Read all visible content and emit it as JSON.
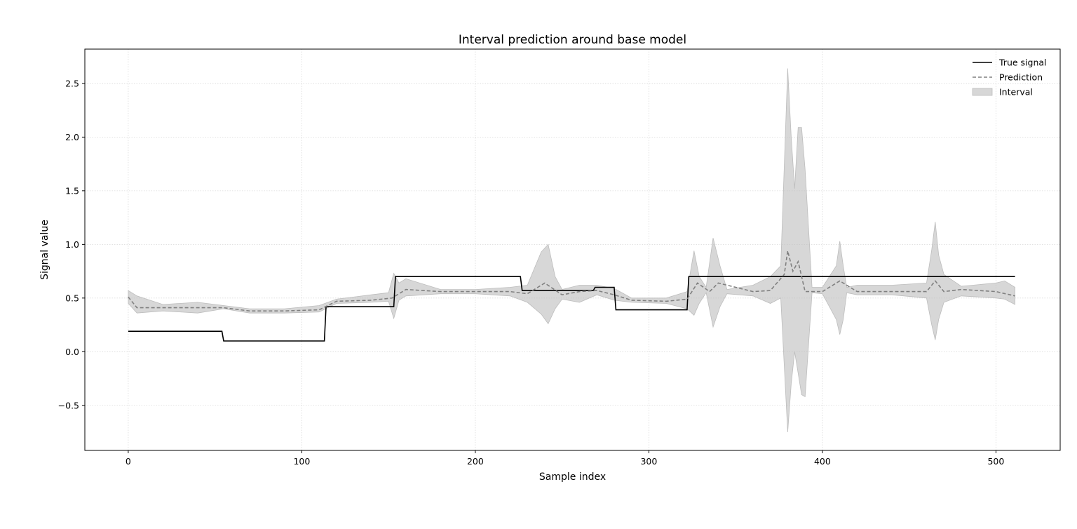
{
  "chart_data": {
    "type": "line",
    "title": "Interval prediction around base model",
    "xlabel": "Sample index",
    "ylabel": "Signal value",
    "xlim": [
      -25,
      537
    ],
    "ylim": [
      -0.92,
      2.82
    ],
    "xticks": [
      0,
      100,
      200,
      300,
      400,
      500
    ],
    "yticks": [
      -0.5,
      0.0,
      0.5,
      1.0,
      1.5,
      2.0,
      2.5
    ],
    "ytick_labels": [
      "−0.5",
      "0.0",
      "0.5",
      "1.0",
      "1.5",
      "2.0",
      "2.5"
    ],
    "grid": true,
    "legend_position": "top-right",
    "series": [
      {
        "name": "True signal",
        "style": "solid",
        "color": "#000000",
        "x": [
          0,
          54,
          55,
          113,
          114,
          153,
          154,
          226,
          227,
          268,
          269,
          280,
          281,
          322,
          323,
          511
        ],
        "y": [
          0.19,
          0.19,
          0.1,
          0.1,
          0.42,
          0.42,
          0.7,
          0.7,
          0.57,
          0.57,
          0.6,
          0.6,
          0.39,
          0.39,
          0.7,
          0.7
        ]
      },
      {
        "name": "Prediction",
        "style": "dashed",
        "color": "#808080",
        "x": [
          0,
          5,
          20,
          40,
          55,
          70,
          90,
          110,
          120,
          140,
          152,
          160,
          180,
          200,
          220,
          230,
          240,
          250,
          260,
          270,
          280,
          290,
          310,
          322,
          328,
          335,
          340,
          360,
          370,
          378,
          380,
          383,
          386,
          390,
          400,
          410,
          420,
          440,
          460,
          465,
          470,
          480,
          500,
          511
        ],
        "y": [
          0.51,
          0.41,
          0.41,
          0.41,
          0.41,
          0.38,
          0.38,
          0.39,
          0.47,
          0.48,
          0.5,
          0.58,
          0.56,
          0.56,
          0.56,
          0.54,
          0.64,
          0.53,
          0.56,
          0.57,
          0.53,
          0.48,
          0.47,
          0.49,
          0.64,
          0.56,
          0.64,
          0.56,
          0.57,
          0.72,
          0.94,
          0.75,
          0.84,
          0.56,
          0.56,
          0.66,
          0.56,
          0.56,
          0.56,
          0.66,
          0.56,
          0.58,
          0.56,
          0.52
        ]
      },
      {
        "name": "Interval",
        "style": "band",
        "color": "#bdbdbd",
        "x": [
          0,
          5,
          20,
          40,
          55,
          70,
          90,
          110,
          120,
          140,
          150,
          153,
          156,
          160,
          180,
          200,
          220,
          230,
          238,
          242,
          246,
          250,
          260,
          270,
          280,
          290,
          310,
          322,
          326,
          329,
          333,
          337,
          341,
          345,
          360,
          370,
          376,
          380,
          382,
          384,
          386,
          388,
          390,
          394,
          400,
          408,
          410,
          412,
          414,
          420,
          440,
          460,
          463,
          465,
          467,
          470,
          480,
          500,
          505,
          511
        ],
        "lower": [
          0.45,
          0.36,
          0.38,
          0.36,
          0.4,
          0.36,
          0.36,
          0.37,
          0.45,
          0.46,
          0.47,
          0.31,
          0.48,
          0.52,
          0.54,
          0.54,
          0.52,
          0.46,
          0.35,
          0.26,
          0.4,
          0.49,
          0.46,
          0.53,
          0.48,
          0.46,
          0.45,
          0.4,
          0.34,
          0.45,
          0.55,
          0.23,
          0.42,
          0.54,
          0.52,
          0.45,
          0.5,
          -0.75,
          -0.3,
          0.0,
          -0.2,
          -0.4,
          -0.42,
          0.55,
          0.54,
          0.3,
          0.16,
          0.3,
          0.55,
          0.53,
          0.53,
          0.5,
          0.25,
          0.11,
          0.3,
          0.46,
          0.52,
          0.5,
          0.49,
          0.44
        ],
        "upper": [
          0.57,
          0.52,
          0.44,
          0.46,
          0.43,
          0.4,
          0.4,
          0.43,
          0.49,
          0.53,
          0.55,
          0.73,
          0.64,
          0.68,
          0.58,
          0.58,
          0.6,
          0.62,
          0.93,
          1.0,
          0.7,
          0.58,
          0.62,
          0.62,
          0.59,
          0.5,
          0.5,
          0.56,
          0.94,
          0.7,
          0.6,
          1.06,
          0.8,
          0.58,
          0.62,
          0.7,
          0.8,
          2.64,
          2.0,
          1.52,
          2.09,
          2.09,
          1.7,
          0.6,
          0.6,
          0.8,
          1.03,
          0.8,
          0.6,
          0.62,
          0.62,
          0.64,
          0.95,
          1.21,
          0.9,
          0.72,
          0.61,
          0.64,
          0.66,
          0.6
        ]
      }
    ]
  }
}
